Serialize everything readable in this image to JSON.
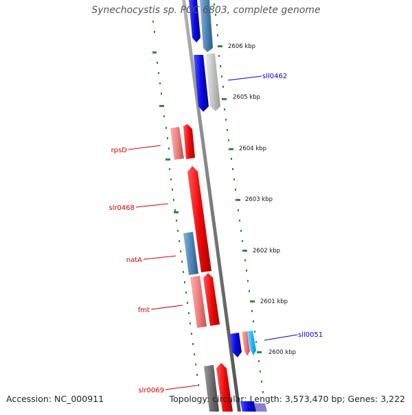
{
  "title": "Synechocystis sp. PCC 6803, complete genome",
  "footer": {
    "accession": "Accession: NC_000911",
    "summary": "Topology: circular; Length: 3,573,470 bp; Genes: 3,222"
  },
  "colors": {
    "backbone": "#8c8c8c",
    "ruler_ticks": "#2e8b2e",
    "forward_gene_label": "#0000cc",
    "reverse_gene_label": "#cc0000",
    "strong_blue": "#1515e6",
    "steel_blue": "#4f86b8",
    "light_gray": "#c8c8c8",
    "red": "#ee0a0a",
    "salmon": "#f08080",
    "dark_gray": "#6e6e6e",
    "cyan": "#1ebfff"
  },
  "ruler_labels": [
    "2606 kbp",
    "2605 kbp",
    "2604 kbp",
    "2603 kbp",
    "2602 kbp",
    "2601 kbp",
    "2600 kbp"
  ],
  "gene_labels": {
    "forward": [
      "sll0462",
      "sll0051"
    ],
    "reverse": [
      "rpsD",
      "slr0468",
      "natA",
      "fmt",
      "slr0069"
    ]
  }
}
